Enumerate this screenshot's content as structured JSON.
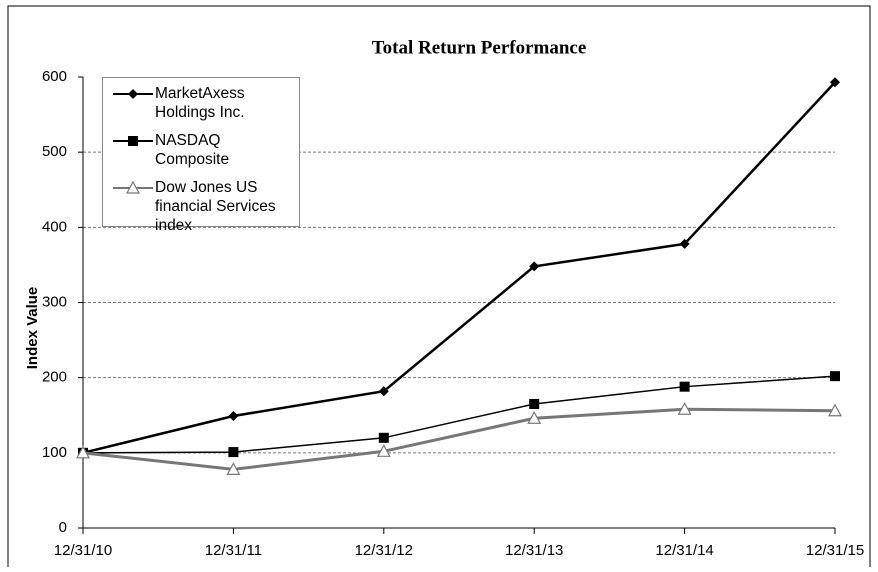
{
  "chart_data": {
    "type": "line",
    "title": "Total Return Performance",
    "y_label": "Index Value",
    "categories": [
      "12/31/10",
      "12/31/11",
      "12/31/12",
      "12/31/13",
      "12/31/14",
      "12/31/15"
    ],
    "series": [
      {
        "name": "MarketAxess Holdings Inc.",
        "color": "#000000",
        "marker": "diamond",
        "values": [
          100,
          149,
          182,
          348,
          378,
          593
        ]
      },
      {
        "name": "NASDAQ Composite",
        "color": "#000000",
        "marker": "square",
        "values": [
          100,
          101,
          120,
          165,
          188,
          202
        ]
      },
      {
        "name": "Dow Jones US financial Services index",
        "color": "#777777",
        "marker": "triangle",
        "values": [
          100,
          78,
          102,
          146,
          158,
          156
        ]
      }
    ],
    "ylim": [
      0,
      600
    ],
    "yticks": [
      0,
      100,
      200,
      300,
      400,
      500,
      600
    ],
    "grid": true,
    "legend": "upper left"
  }
}
